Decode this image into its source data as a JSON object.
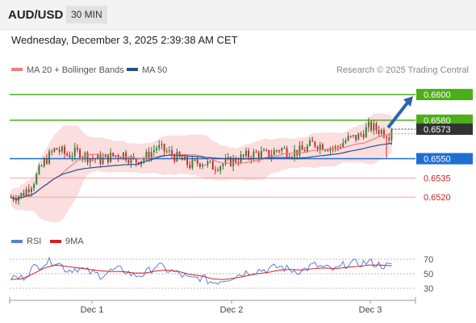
{
  "header": {
    "symbol": "AUD/USD",
    "interval": "30 MIN"
  },
  "datetime": "Wednesday, December 3, 2025 2:39:38 AM CET",
  "legend": {
    "ma20": {
      "label": "MA 20 + Bollinger Bands",
      "color": "#f08080"
    },
    "ma50": {
      "label": "MA 50",
      "color": "#2a4f8f"
    },
    "credit": "Research © 2025 Trading Central"
  },
  "colors": {
    "up": "#2e7d32",
    "down": "#c62828",
    "resistance": "#4caf1a",
    "pivot": "#1f6fd1",
    "support": "#f5a0a0",
    "current": "#333333",
    "arrow": "#2a63b0",
    "band": "#fbdede"
  },
  "chart_data": [
    {
      "type": "candlestick",
      "ylim": [
        0.6505,
        0.6612
      ],
      "x_ticks": [
        "Dec 1",
        "Dec 2",
        "Dec 3"
      ],
      "last_price": {
        "label": "0.6573",
        "value": 0.6573
      },
      "levels": [
        {
          "label": "0.6600",
          "value": 0.66,
          "role": "resistance"
        },
        {
          "label": "0.6580",
          "value": 0.658,
          "role": "resistance"
        },
        {
          "label": "0.6550",
          "value": 0.655,
          "role": "pivot"
        },
        {
          "label": "0.6535",
          "value": 0.6535,
          "role": "support"
        },
        {
          "label": "0.6520",
          "value": 0.652,
          "role": "support"
        }
      ],
      "target_arrow": {
        "from": 0.6573,
        "to": 0.66
      },
      "anchors": [
        0.652,
        0.6522,
        0.6532,
        0.6548,
        0.6558,
        0.6553,
        0.6555,
        0.6551,
        0.6549,
        0.6552,
        0.6554,
        0.6548,
        0.6551,
        0.6559,
        0.6555,
        0.655,
        0.6545,
        0.6548,
        0.6544,
        0.6546,
        0.6549,
        0.6552,
        0.6554,
        0.6553,
        0.6558,
        0.6555,
        0.6556,
        0.6562,
        0.656,
        0.6558,
        0.6565,
        0.6567,
        0.6575,
        0.6572,
        0.6568
      ]
    },
    {
      "type": "line",
      "series": [
        {
          "name": "RSI",
          "color": "#5a7fd6"
        },
        {
          "name": "9MA",
          "color": "#d62020"
        }
      ],
      "ylim": [
        20,
        80
      ],
      "y_ticks": [
        70,
        50,
        30
      ],
      "rsi_anchors": [
        45,
        44,
        58,
        65,
        68,
        55,
        58,
        52,
        48,
        54,
        56,
        47,
        50,
        62,
        55,
        50,
        42,
        45,
        38,
        42,
        47,
        52,
        55,
        56,
        60,
        55,
        54,
        62,
        58,
        55,
        64,
        64,
        66,
        62,
        60
      ],
      "ma_anchors": [
        42,
        43,
        50,
        58,
        62,
        60,
        58,
        56,
        54,
        53,
        53,
        51,
        51,
        54,
        55,
        53,
        49,
        47,
        43,
        42,
        44,
        47,
        50,
        52,
        55,
        56,
        55,
        57,
        58,
        57,
        59,
        60,
        62,
        62,
        61
      ]
    }
  ]
}
